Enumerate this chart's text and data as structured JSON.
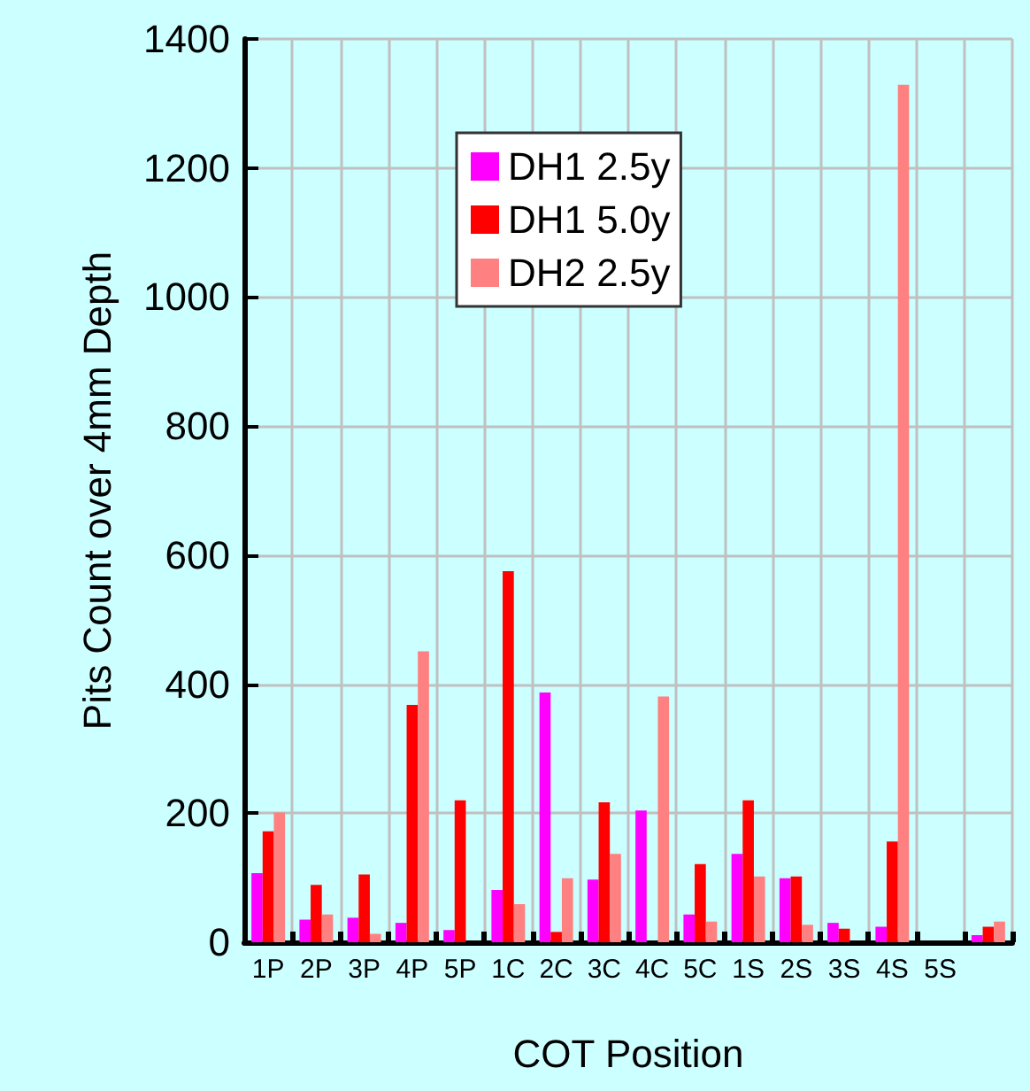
{
  "chart_data": {
    "type": "bar",
    "xlabel": "COT Position",
    "ylabel": "Pits Count over 4mm Depth",
    "categories": [
      "1P",
      "2P",
      "3P",
      "4P",
      "5P",
      "1C",
      "2C",
      "3C",
      "4C",
      "5C",
      "1S",
      "2S",
      "3S",
      "4S",
      "5S",
      null
    ],
    "series": [
      {
        "name": "DH1 2.5y",
        "color": "#ff00ff",
        "values": [
          107,
          35,
          38,
          30,
          19,
          81,
          387,
          97,
          204,
          43,
          137,
          99,
          30,
          24,
          null,
          11
        ]
      },
      {
        "name": "DH1 5.0y",
        "color": "#ff0000",
        "values": [
          172,
          89,
          105,
          368,
          220,
          575,
          16,
          217,
          null,
          121,
          220,
          102,
          21,
          156,
          null,
          24
        ]
      },
      {
        "name": "DH2 2.5y",
        "color": "#ff8080",
        "values": [
          201,
          43,
          13,
          451,
          null,
          59,
          99,
          137,
          381,
          32,
          102,
          27,
          null,
          1329,
          null,
          32
        ]
      }
    ],
    "ylim": [
      0,
      1400
    ],
    "yticks": [
      0,
      200,
      400,
      600,
      800,
      1000,
      1200,
      1400
    ],
    "grid": true,
    "legend": "top left"
  }
}
